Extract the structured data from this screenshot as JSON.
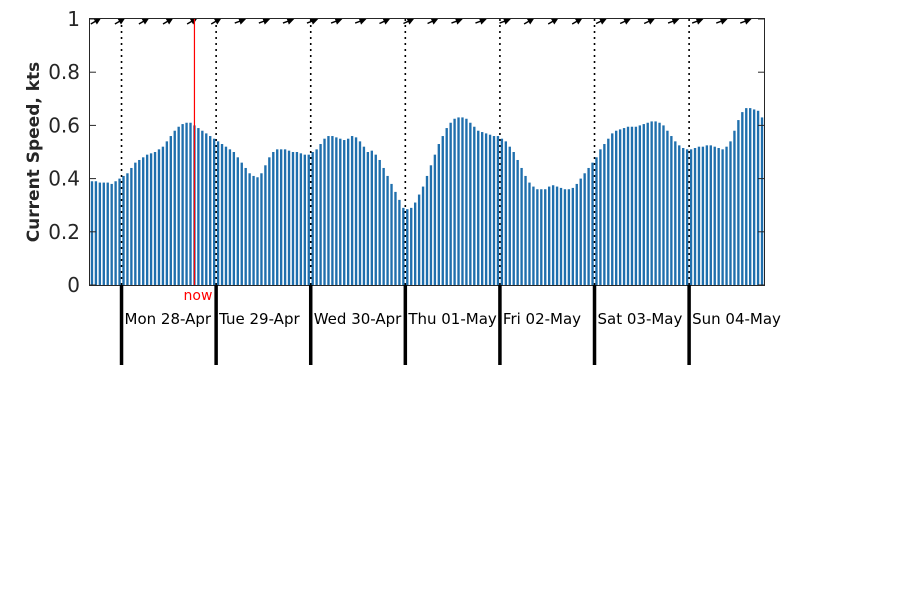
{
  "chart_data": {
    "type": "bar",
    "title": "",
    "ylabel": "Current Speed, kts",
    "xlabel": "",
    "ylim": [
      0,
      1
    ],
    "yticks": [
      "0",
      "0.2",
      "0.4",
      "0.6",
      "0.8",
      "1"
    ],
    "grid": false,
    "bar_color": "#1f6fad",
    "now_color": "#ff0000",
    "now_label": "now",
    "now_time": 26,
    "hours_per_sample": 1,
    "day_labels": [
      "Mon 28-Apr",
      "Tue 29-Apr",
      "Wed 30-Apr",
      "Thu 01-May",
      "Fri 02-May",
      "Sat 03-May",
      "Sun 04-May"
    ],
    "day_starts": [
      8,
      32,
      56,
      80,
      104,
      128,
      152
    ],
    "values": [
      0.39,
      0.39,
      0.385,
      0.385,
      0.385,
      0.38,
      0.39,
      0.4,
      0.41,
      0.42,
      0.44,
      0.46,
      0.47,
      0.48,
      0.49,
      0.495,
      0.5,
      0.51,
      0.52,
      0.54,
      0.56,
      0.58,
      0.595,
      0.605,
      0.61,
      0.61,
      0.6,
      0.59,
      0.58,
      0.57,
      0.56,
      0.55,
      0.54,
      0.53,
      0.52,
      0.51,
      0.5,
      0.48,
      0.46,
      0.44,
      0.42,
      0.41,
      0.405,
      0.42,
      0.45,
      0.48,
      0.5,
      0.51,
      0.51,
      0.51,
      0.505,
      0.5,
      0.5,
      0.495,
      0.49,
      0.49,
      0.5,
      0.51,
      0.53,
      0.55,
      0.56,
      0.56,
      0.555,
      0.55,
      0.545,
      0.55,
      0.56,
      0.555,
      0.54,
      0.52,
      0.5,
      0.505,
      0.49,
      0.47,
      0.44,
      0.41,
      0.38,
      0.35,
      0.32,
      0.29,
      0.285,
      0.29,
      0.31,
      0.34,
      0.37,
      0.41,
      0.45,
      0.49,
      0.53,
      0.56,
      0.59,
      0.61,
      0.625,
      0.63,
      0.63,
      0.625,
      0.61,
      0.595,
      0.58,
      0.575,
      0.57,
      0.565,
      0.56,
      0.56,
      0.55,
      0.54,
      0.52,
      0.5,
      0.47,
      0.44,
      0.41,
      0.385,
      0.37,
      0.36,
      0.36,
      0.36,
      0.37,
      0.375,
      0.37,
      0.365,
      0.36,
      0.36,
      0.365,
      0.38,
      0.4,
      0.42,
      0.44,
      0.46,
      0.48,
      0.51,
      0.53,
      0.55,
      0.57,
      0.58,
      0.585,
      0.59,
      0.595,
      0.595,
      0.595,
      0.6,
      0.605,
      0.61,
      0.615,
      0.615,
      0.61,
      0.6,
      0.58,
      0.56,
      0.54,
      0.525,
      0.515,
      0.51,
      0.51,
      0.515,
      0.52,
      0.52,
      0.525,
      0.525,
      0.52,
      0.515,
      0.51,
      0.52,
      0.54,
      0.58,
      0.62,
      0.65,
      0.665,
      0.665,
      0.66,
      0.655,
      0.63
    ],
    "direction_arrows": [
      -30,
      -30,
      -30,
      -30,
      -30,
      -30,
      -20,
      -20,
      -20,
      -20,
      -20,
      -20,
      -25,
      -25,
      -25,
      -20,
      -20,
      -20,
      -30,
      -30,
      -30,
      -25,
      -25,
      -25,
      -20,
      -20,
      -20,
      -20
    ]
  }
}
